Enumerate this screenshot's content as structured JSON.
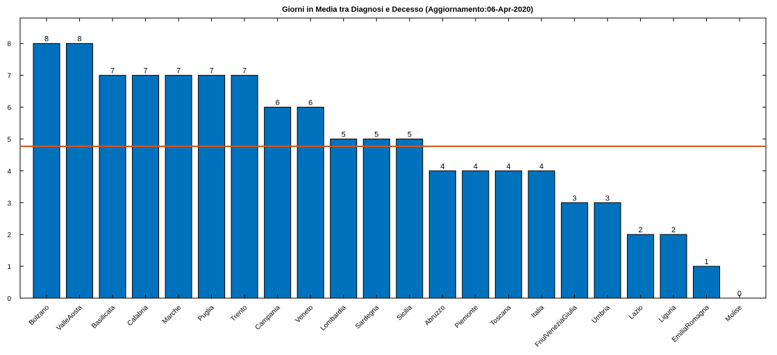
{
  "chart_data": {
    "type": "bar",
    "title": "Giorni in Media tra Diagnosi e Decesso (Aggiornamento:06-Apr-2020)",
    "xlabel": "",
    "ylabel": "",
    "categories": [
      "Bolzano",
      "ValleAosta",
      "Basilicata",
      "Calabria",
      "Marche",
      "Puglia",
      "Trento",
      "Campania",
      "Veneto",
      "Lombardia",
      "Sardegna",
      "Sicilia",
      "Abruzzo",
      "Piemonte",
      "Toscana",
      "Italia",
      "FriulVeneziaGiulia",
      "Umbria",
      "Lazio",
      "Liguria",
      "EmiliaRomagna",
      "Molise"
    ],
    "values": [
      8,
      8,
      7,
      7,
      7,
      7,
      7,
      6,
      6,
      5,
      5,
      5,
      4,
      4,
      4,
      4,
      3,
      3,
      2,
      2,
      1,
      0
    ],
    "data_labels": [
      "8",
      "8",
      "7",
      "7",
      "7",
      "7",
      "7",
      "6",
      "6",
      "5",
      "5",
      "5",
      "4",
      "4",
      "4",
      "4",
      "3",
      "3",
      "2",
      "2",
      "1",
      "0"
    ],
    "ylim": [
      0,
      8.8
    ],
    "yticks": [
      0,
      1,
      2,
      3,
      4,
      5,
      6,
      7,
      8
    ],
    "ytick_labels": [
      "0",
      "1",
      "2",
      "3",
      "4",
      "5",
      "6",
      "7",
      "8"
    ],
    "reference_line": {
      "value": 4.77,
      "color": "#d95319"
    },
    "bar_color": "#0072bd",
    "grid": false,
    "legend": "none"
  }
}
